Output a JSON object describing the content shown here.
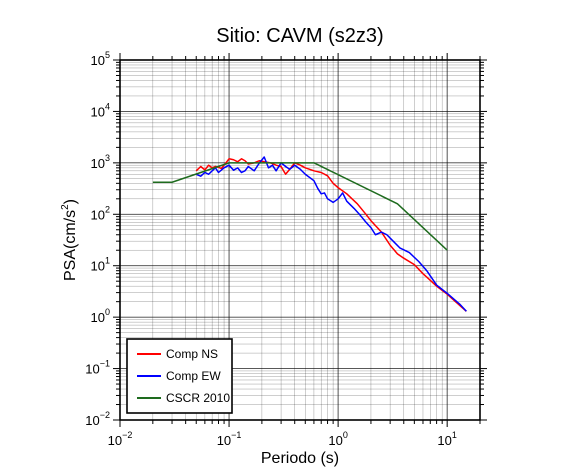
{
  "chart_data": {
    "type": "line",
    "title": "Sitio: CAVM (s2z3)",
    "xlabel": "Periodo (s)",
    "ylabel_main": "PSA(cm/s",
    "ylabel_exp": "2",
    "ylabel_close": ")",
    "xscale": "log",
    "yscale": "log",
    "xlim": [
      0.01,
      20
    ],
    "ylim": [
      0.01,
      100000
    ],
    "grid": true,
    "legend_position": "bottom-left",
    "x_ticks": [
      {
        "base": "10",
        "exp": "−2",
        "value": 0.01
      },
      {
        "base": "10",
        "exp": "−1",
        "value": 0.1
      },
      {
        "base": "10",
        "exp": "0",
        "value": 1
      },
      {
        "base": "10",
        "exp": "1",
        "value": 10
      }
    ],
    "y_ticks": [
      {
        "base": "10",
        "exp": "−2",
        "value": 0.01
      },
      {
        "base": "10",
        "exp": "−1",
        "value": 0.1
      },
      {
        "base": "10",
        "exp": "0",
        "value": 1
      },
      {
        "base": "10",
        "exp": "1",
        "value": 10
      },
      {
        "base": "10",
        "exp": "2",
        "value": 100
      },
      {
        "base": "10",
        "exp": "3",
        "value": 1000
      },
      {
        "base": "10",
        "exp": "4",
        "value": 10000
      },
      {
        "base": "10",
        "exp": "5",
        "value": 100000
      }
    ],
    "series": [
      {
        "name": "Comp NS",
        "color": "#ff0000",
        "points": [
          [
            0.05,
            700
          ],
          [
            0.055,
            850
          ],
          [
            0.06,
            730
          ],
          [
            0.065,
            900
          ],
          [
            0.07,
            800
          ],
          [
            0.075,
            850
          ],
          [
            0.08,
            820
          ],
          [
            0.085,
            780
          ],
          [
            0.09,
            900
          ],
          [
            0.1,
            1200
          ],
          [
            0.11,
            1150
          ],
          [
            0.12,
            1050
          ],
          [
            0.13,
            1200
          ],
          [
            0.14,
            1100
          ],
          [
            0.15,
            950
          ],
          [
            0.17,
            1000
          ],
          [
            0.19,
            1100
          ],
          [
            0.21,
            1050
          ],
          [
            0.24,
            1000
          ],
          [
            0.27,
            900
          ],
          [
            0.3,
            850
          ],
          [
            0.33,
            600
          ],
          [
            0.36,
            750
          ],
          [
            0.4,
            1000
          ],
          [
            0.45,
            900
          ],
          [
            0.5,
            800
          ],
          [
            0.6,
            700
          ],
          [
            0.7,
            650
          ],
          [
            0.8,
            560
          ],
          [
            0.9,
            400
          ],
          [
            1.0,
            330
          ],
          [
            1.2,
            250
          ],
          [
            1.5,
            160
          ],
          [
            1.8,
            100
          ],
          [
            2.0,
            75
          ],
          [
            2.5,
            45
          ],
          [
            3.0,
            25
          ],
          [
            3.5,
            17
          ],
          [
            4.0,
            14
          ],
          [
            5.0,
            10.5
          ],
          [
            6.0,
            7
          ],
          [
            7.0,
            5.2
          ],
          [
            8.0,
            4.0
          ],
          [
            10.0,
            2.8
          ],
          [
            13.0,
            1.7
          ],
          [
            15.0,
            1.3
          ]
        ]
      },
      {
        "name": "Comp EW",
        "color": "#0000ff",
        "points": [
          [
            0.05,
            600
          ],
          [
            0.055,
            550
          ],
          [
            0.06,
            650
          ],
          [
            0.065,
            600
          ],
          [
            0.07,
            700
          ],
          [
            0.075,
            800
          ],
          [
            0.08,
            650
          ],
          [
            0.09,
            800
          ],
          [
            0.1,
            900
          ],
          [
            0.11,
            720
          ],
          [
            0.12,
            800
          ],
          [
            0.13,
            650
          ],
          [
            0.14,
            700
          ],
          [
            0.15,
            850
          ],
          [
            0.17,
            700
          ],
          [
            0.19,
            1000
          ],
          [
            0.21,
            1300
          ],
          [
            0.23,
            800
          ],
          [
            0.25,
            900
          ],
          [
            0.27,
            700
          ],
          [
            0.3,
            1000
          ],
          [
            0.33,
            850
          ],
          [
            0.36,
            750
          ],
          [
            0.4,
            900
          ],
          [
            0.45,
            750
          ],
          [
            0.5,
            600
          ],
          [
            0.6,
            450
          ],
          [
            0.65,
            320
          ],
          [
            0.7,
            250
          ],
          [
            0.75,
            260
          ],
          [
            0.8,
            200
          ],
          [
            0.9,
            170
          ],
          [
            1.0,
            200
          ],
          [
            1.1,
            260
          ],
          [
            1.2,
            180
          ],
          [
            1.4,
            130
          ],
          [
            1.6,
            95
          ],
          [
            1.8,
            70
          ],
          [
            2.0,
            55
          ],
          [
            2.2,
            40
          ],
          [
            2.5,
            45
          ],
          [
            2.8,
            40
          ],
          [
            3.2,
            30
          ],
          [
            3.7,
            22
          ],
          [
            4.5,
            18
          ],
          [
            5.5,
            12
          ],
          [
            6.5,
            8
          ],
          [
            8.0,
            4.2
          ],
          [
            10.0,
            2.9
          ],
          [
            13.0,
            1.8
          ],
          [
            15.0,
            1.3
          ]
        ]
      },
      {
        "name": "CSCR 2010",
        "color": "#1e6b1e",
        "points": [
          [
            0.02,
            420
          ],
          [
            0.03,
            420
          ],
          [
            0.1,
            1000
          ],
          [
            0.6,
            1000
          ],
          [
            3.5,
            160
          ],
          [
            10.0,
            20
          ]
        ]
      }
    ]
  }
}
